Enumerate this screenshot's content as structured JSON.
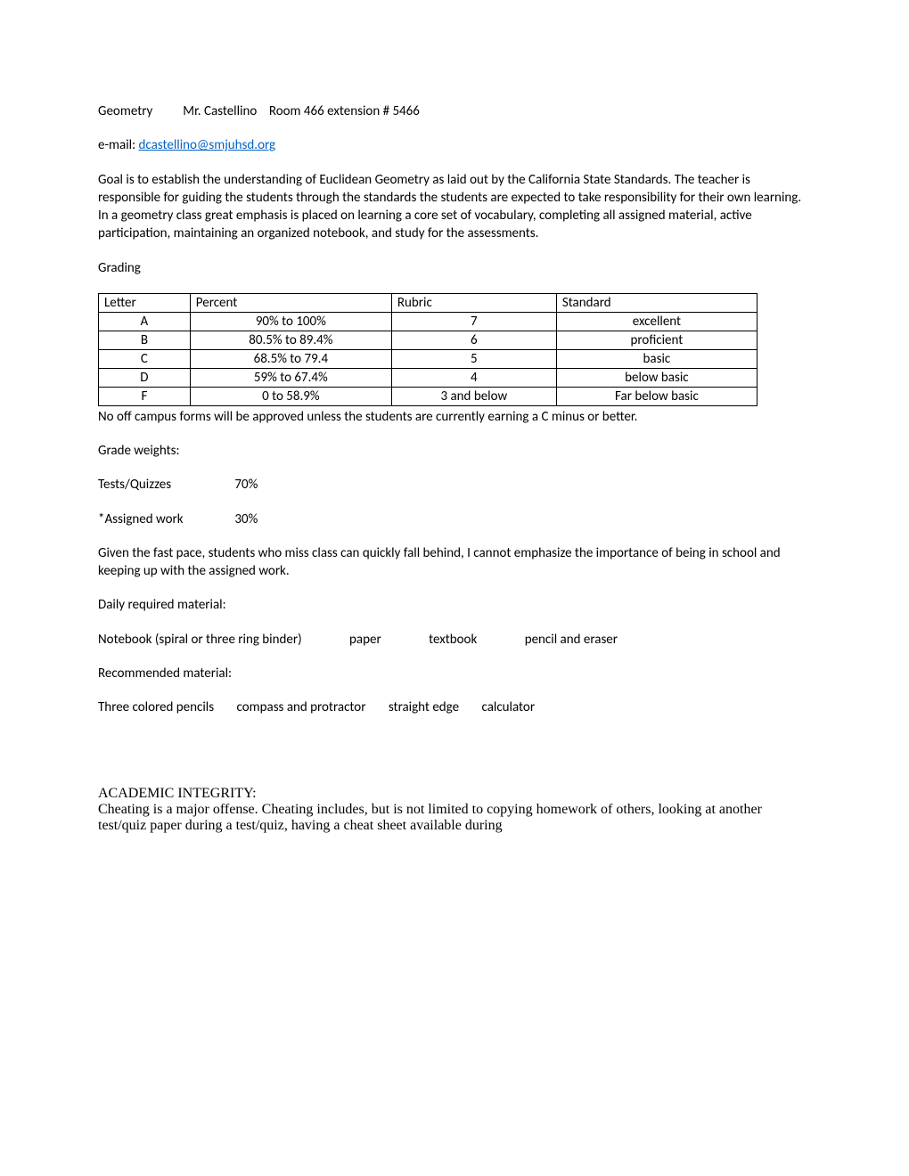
{
  "header": {
    "course": "Geometry",
    "teacher": "Mr. Castellino",
    "room": "Room 466 extension # 5466",
    "email_prefix": "e-mail: ",
    "email": "dcastellino@smjuhsd.org"
  },
  "goal_paragraph": "Goal is to establish the understanding of Euclidean Geometry as laid out by the California State Standards. The teacher is responsible for guiding the students through the standards the students are expected to take responsibility for their own learning. In a geometry class great emphasis is placed on learning a core set of vocabulary,  completing all assigned material, active participation,  maintaining an organized notebook, and study for the assessments.",
  "grading_label": "Grading",
  "table": {
    "columns": [
      "Letter",
      "Percent",
      "Rubric",
      "Standard"
    ],
    "rows": [
      [
        "A",
        "90% to 100%",
        "7",
        "excellent"
      ],
      [
        "B",
        "80.5% to 89.4%",
        "6",
        "proficient"
      ],
      [
        "C",
        "68.5% to 79.4",
        "5",
        "basic"
      ],
      [
        "D",
        "59% to 67.4%",
        "4",
        "below basic"
      ],
      [
        "F",
        "0 to 58.9%",
        "3 and below",
        "Far below basic"
      ]
    ]
  },
  "off_campus": "No off campus forms will be approved unless the students are currently earning a C minus or better.",
  "weights_label": "Grade weights:",
  "weights": [
    {
      "label": "Tests/Quizzes",
      "value": "70%"
    },
    {
      "label": "*Assigned work",
      "value": "30%"
    }
  ],
  "pace_paragraph": "Given the fast pace, students who miss class can quickly fall behind, I cannot emphasize the importance of being in school and keeping up with the assigned work.",
  "daily_label": "Daily required material:",
  "daily_items": [
    "Notebook  (spiral or three ring binder)",
    "paper",
    "textbook",
    "pencil and eraser"
  ],
  "rec_label": "Recommended material:",
  "rec_items": [
    "Three colored pencils",
    "compass and protractor",
    "straight edge",
    "calculator"
  ],
  "integrity_heading": "ACADEMIC INTEGRITY:",
  "integrity_body": "Cheating is a major offense. Cheating includes, but is not limited to copying homework of others, looking at another test/quiz paper during a test/quiz, having a cheat sheet available during"
}
